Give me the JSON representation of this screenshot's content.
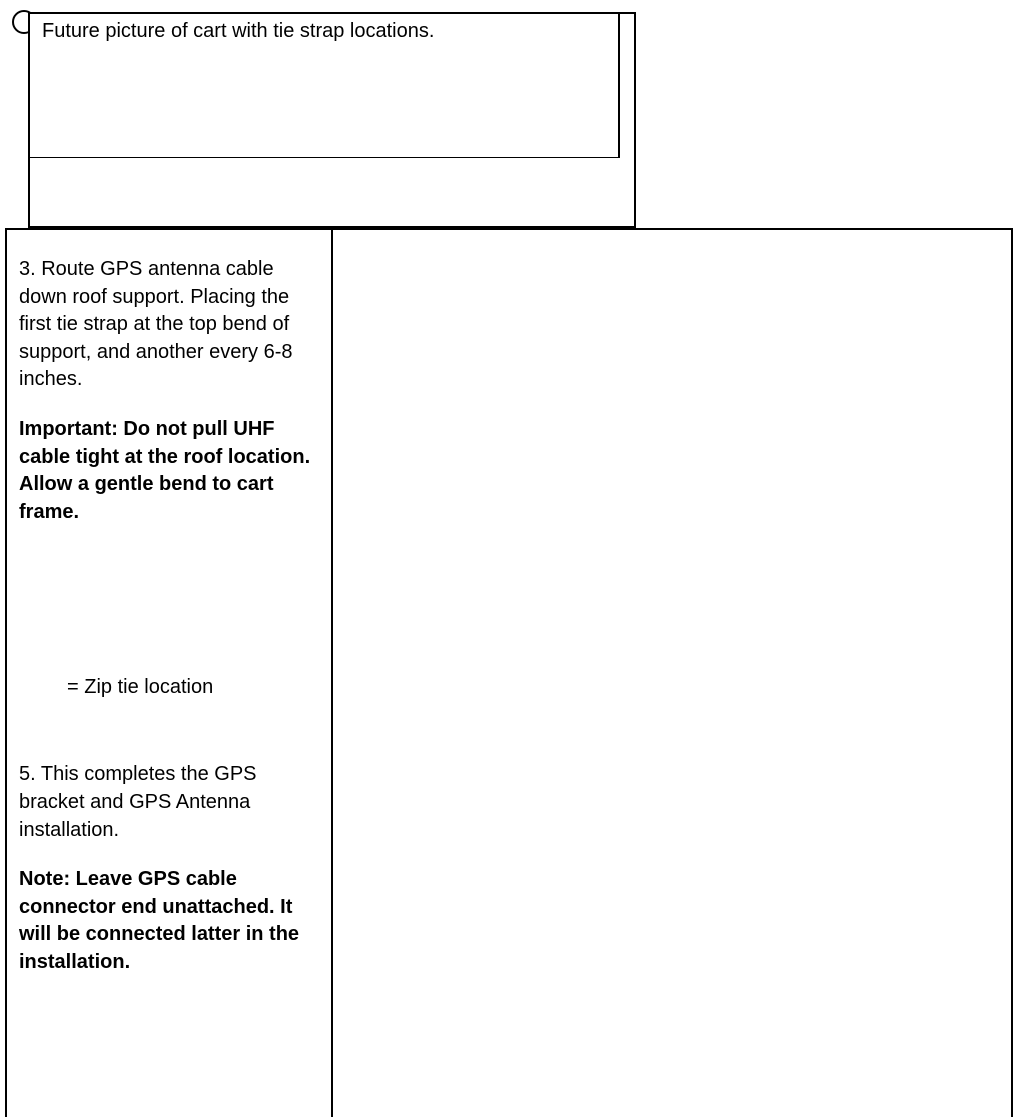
{
  "placeholder": {
    "text": "Future picture of cart with tie strap locations."
  },
  "steps": {
    "step3": "3.  Route GPS antenna cable down roof support.  Placing the first tie strap at the top bend of support, and another every 6-8 inches.",
    "important": "Important:   Do not pull UHF cable tight at the roof location.  Allow a gentle bend to cart frame.",
    "legend": "=  Zip tie location",
    "step5": "5. This completes the GPS bracket and GPS Antenna installation.",
    "note": "Note:  Leave GPS cable connector end unattached.  It will be connected latter in the installation."
  },
  "colors": {
    "text": "#000000",
    "background": "#ffffff",
    "border": "#000000"
  },
  "typography": {
    "body_fontsize": 20,
    "font_family": "Arial"
  }
}
